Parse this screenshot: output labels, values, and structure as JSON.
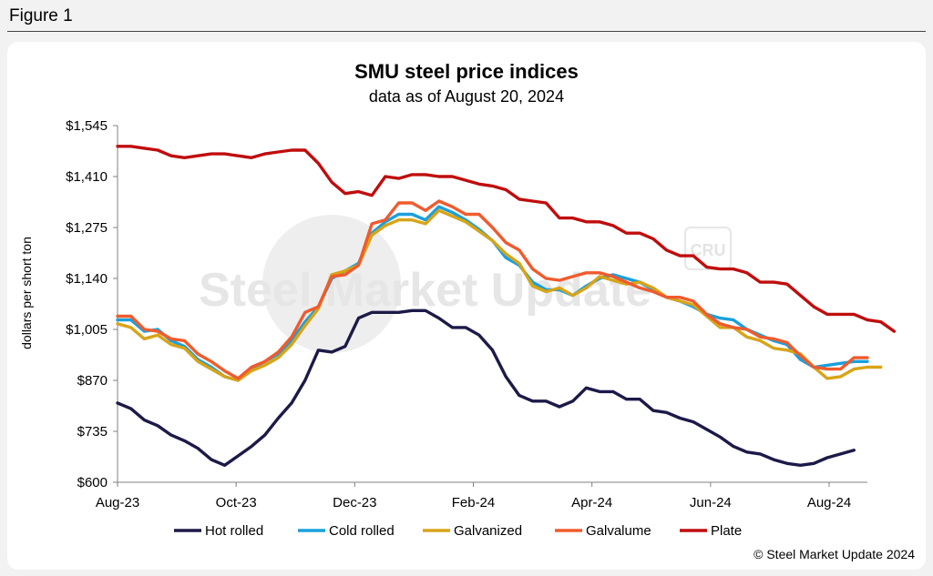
{
  "figure_label": "Figure 1",
  "watermark_text": "Steel Market Update",
  "watermark_logo": "CRU",
  "copyright": "© Steel Market Update 2024",
  "colors": {
    "background": "#f2f2f2",
    "panel": "#ffffff",
    "axis": "#808080"
  },
  "chart_data": {
    "type": "line",
    "title": "SMU steel price indices",
    "subtitle": "data as of August 20, 2024",
    "ylabel": "dollars per short ton",
    "xlabel": "",
    "ylim": [
      600,
      1545
    ],
    "yticks": [
      600,
      735,
      870,
      1005,
      1140,
      1275,
      1410,
      1545
    ],
    "ytick_labels": [
      "$600",
      "$735",
      "$870",
      "$1,005",
      "$1,140",
      "$1,275",
      "$1,410",
      "$1,545"
    ],
    "xticks": [
      0,
      8.857,
      17.714,
      26.571,
      35.429,
      44.286,
      53.143
    ],
    "xtick_labels": [
      "Aug-23",
      "Oct-23",
      "Dec-23",
      "Feb-24",
      "Apr-24",
      "Jun-24",
      "Aug-24"
    ],
    "xlim": [
      0,
      56
    ],
    "legend_position": "bottom",
    "grid": false,
    "series": [
      {
        "name": "Hot rolled",
        "color": "#1c1a48",
        "values": [
          810,
          795,
          765,
          750,
          725,
          710,
          690,
          660,
          645,
          670,
          695,
          725,
          770,
          810,
          870,
          950,
          945,
          960,
          1035,
          1050,
          1050,
          1050,
          1055,
          1055,
          1035,
          1010,
          1010,
          990,
          950,
          880,
          830,
          815,
          815,
          800,
          815,
          850,
          840,
          840,
          820,
          820,
          790,
          785,
          770,
          760,
          740,
          720,
          695,
          680,
          675,
          660,
          650,
          645,
          650,
          665,
          675,
          685
        ]
      },
      {
        "name": "Cold rolled",
        "color": "#1aa0dc",
        "values": [
          1030,
          1030,
          1000,
          1005,
          975,
          960,
          925,
          905,
          880,
          870,
          900,
          920,
          940,
          975,
          1025,
          1065,
          1140,
          1160,
          1180,
          1260,
          1290,
          1310,
          1310,
          1295,
          1330,
          1315,
          1295,
          1270,
          1240,
          1195,
          1175,
          1130,
          1110,
          1110,
          1095,
          1120,
          1140,
          1150,
          1140,
          1130,
          1110,
          1090,
          1080,
          1065,
          1045,
          1035,
          1030,
          1005,
          990,
          975,
          965,
          925,
          905,
          910,
          915,
          920,
          920
        ]
      },
      {
        "name": "Galvanized",
        "color": "#d8a417",
        "values": [
          1020,
          1010,
          980,
          990,
          965,
          955,
          920,
          900,
          880,
          870,
          895,
          910,
          930,
          965,
          1015,
          1060,
          1150,
          1160,
          1175,
          1255,
          1280,
          1295,
          1295,
          1285,
          1320,
          1305,
          1290,
          1265,
          1240,
          1205,
          1180,
          1120,
          1105,
          1115,
          1095,
          1115,
          1145,
          1135,
          1125,
          1130,
          1115,
          1090,
          1080,
          1070,
          1040,
          1010,
          1010,
          985,
          975,
          955,
          950,
          940,
          905,
          875,
          880,
          900,
          905,
          905
        ]
      },
      {
        "name": "Galvalume",
        "color": "#ef5b2e",
        "values": [
          1040,
          1040,
          1005,
          1000,
          980,
          975,
          940,
          920,
          895,
          875,
          905,
          920,
          945,
          985,
          1050,
          1065,
          1145,
          1150,
          1175,
          1285,
          1295,
          1340,
          1340,
          1320,
          1345,
          1330,
          1310,
          1310,
          1275,
          1235,
          1215,
          1165,
          1140,
          1135,
          1145,
          1155,
          1155,
          1145,
          1130,
          1115,
          1105,
          1090,
          1090,
          1080,
          1045,
          1020,
          1010,
          1005,
          985,
          980,
          970,
          935,
          905,
          900,
          900,
          930,
          930
        ]
      },
      {
        "name": "Plate",
        "color": "#c00d0d",
        "values": [
          1490,
          1490,
          1485,
          1480,
          1465,
          1460,
          1465,
          1470,
          1470,
          1465,
          1460,
          1470,
          1475,
          1480,
          1480,
          1445,
          1395,
          1365,
          1370,
          1360,
          1410,
          1405,
          1415,
          1415,
          1410,
          1410,
          1400,
          1390,
          1385,
          1375,
          1350,
          1345,
          1340,
          1300,
          1300,
          1290,
          1290,
          1280,
          1260,
          1260,
          1245,
          1215,
          1200,
          1200,
          1170,
          1165,
          1165,
          1155,
          1130,
          1130,
          1125,
          1095,
          1065,
          1045,
          1045,
          1045,
          1030,
          1025,
          1000
        ]
      }
    ]
  }
}
